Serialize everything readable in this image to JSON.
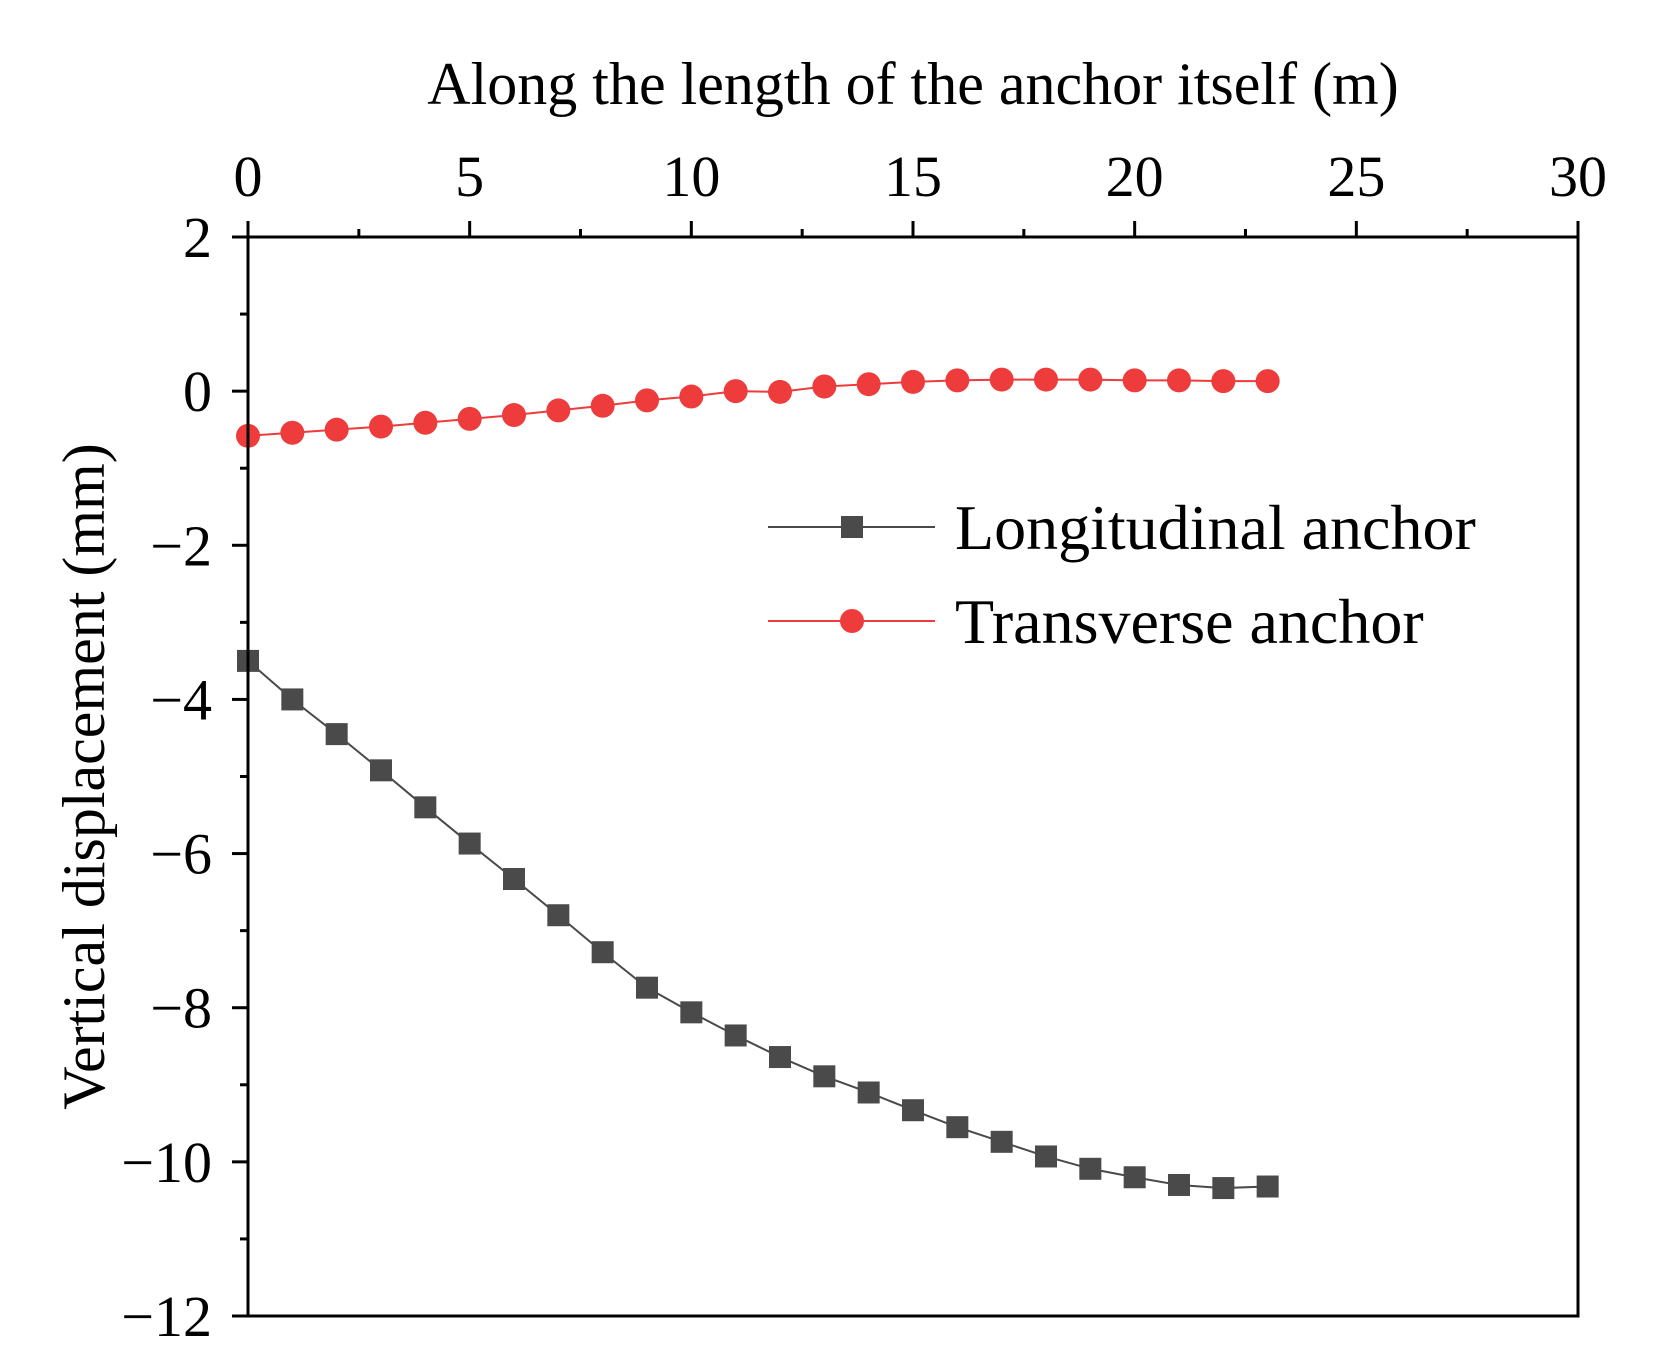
{
  "chart_data": {
    "type": "line",
    "xlabel": "Along the length of the anchor itself (m)",
    "ylabel": "Vertical displacement (mm)",
    "xlim": [
      0,
      30
    ],
    "ylim": [
      -12,
      2
    ],
    "x_ticks": [
      "0",
      "5",
      "10",
      "15",
      "20",
      "25",
      "30"
    ],
    "y_ticks": [
      "2",
      "0",
      "−2",
      "−4",
      "−6",
      "−8",
      "−10",
      "−12"
    ],
    "x_axis_position": "top",
    "grid": false,
    "legend": {
      "position": "right",
      "entries": [
        "Longitudinal anchor",
        "Transverse anchor"
      ]
    },
    "x": [
      0,
      1,
      2,
      3,
      4,
      5,
      6,
      7,
      8,
      9,
      10,
      11,
      12,
      13,
      14,
      15,
      16,
      17,
      18,
      19,
      20,
      21,
      22,
      23
    ],
    "series": [
      {
        "name": "Longitudinal anchor",
        "color": "#4a4a4a",
        "marker": "square",
        "values": [
          -3.5,
          -4.0,
          -4.45,
          -4.92,
          -5.4,
          -5.87,
          -6.33,
          -6.8,
          -7.28,
          -7.74,
          -8.06,
          -8.36,
          -8.64,
          -8.89,
          -9.1,
          -9.33,
          -9.55,
          -9.74,
          -9.93,
          -10.09,
          -10.2,
          -10.3,
          -10.34,
          -10.32
        ]
      },
      {
        "name": "Transverse anchor",
        "color": "#ee3b3b",
        "marker": "circle",
        "values": [
          -0.58,
          -0.54,
          -0.5,
          -0.46,
          -0.41,
          -0.36,
          -0.31,
          -0.25,
          -0.19,
          -0.12,
          -0.07,
          0.0,
          -0.01,
          0.06,
          0.09,
          0.12,
          0.14,
          0.15,
          0.15,
          0.15,
          0.14,
          0.14,
          0.13,
          0.13
        ]
      }
    ]
  }
}
